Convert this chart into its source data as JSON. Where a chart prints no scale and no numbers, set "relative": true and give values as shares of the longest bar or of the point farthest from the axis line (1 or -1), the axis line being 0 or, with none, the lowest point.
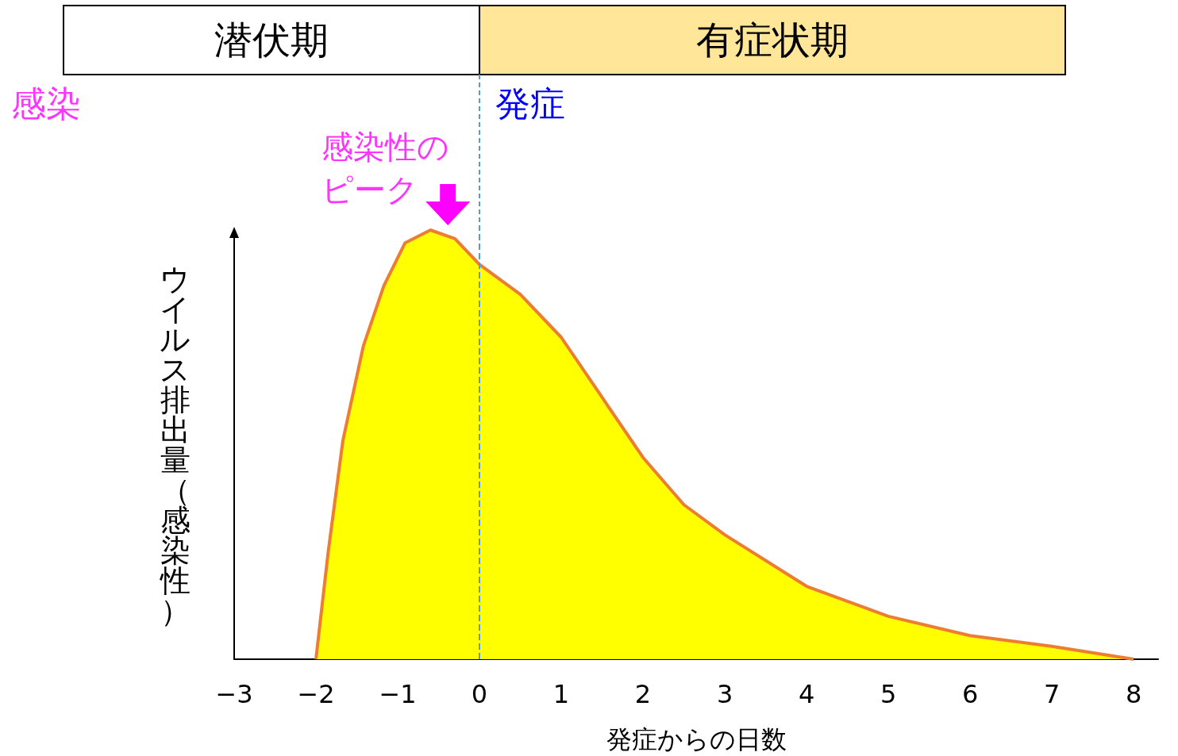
{
  "chart_data": {
    "type": "area",
    "relative": true,
    "xlabel": "発症からの日数",
    "ylabel": "ウイルス排出量（感染性）",
    "x": [
      -2,
      -1.85,
      -1.67,
      -1.42,
      -1.17,
      -0.91,
      -0.6,
      -0.3,
      0,
      0.5,
      1,
      1.5,
      2,
      2.5,
      3,
      4,
      5,
      6,
      7,
      8
    ],
    "series": [
      {
        "color": "#ffff00",
        "values": [
          0,
          0.25,
          0.51,
          0.73,
          0.87,
          0.97,
          1,
          0.98,
          0.92,
          0.85,
          0.75,
          0.61,
          0.47,
          0.36,
          0.29,
          0.17,
          0.1,
          0.055,
          0.03,
          0
        ]
      }
    ],
    "xlim": [
      -3,
      8.3
    ],
    "xticks": [
      -3,
      -2,
      -1,
      0,
      1,
      2,
      3,
      4,
      5,
      6,
      7,
      8
    ],
    "ref_lines": [
      {
        "axis": "x",
        "value": 0,
        "label": "発症",
        "color": "#5b9bd5",
        "line_style": "dashed"
      }
    ],
    "annotations": [
      "潜伏期",
      "有症状期",
      "感染",
      {
        "text": "感染性のピーク",
        "x": -0.6,
        "y": 1
      }
    ],
    "grid": false,
    "marker": "none"
  }
}
